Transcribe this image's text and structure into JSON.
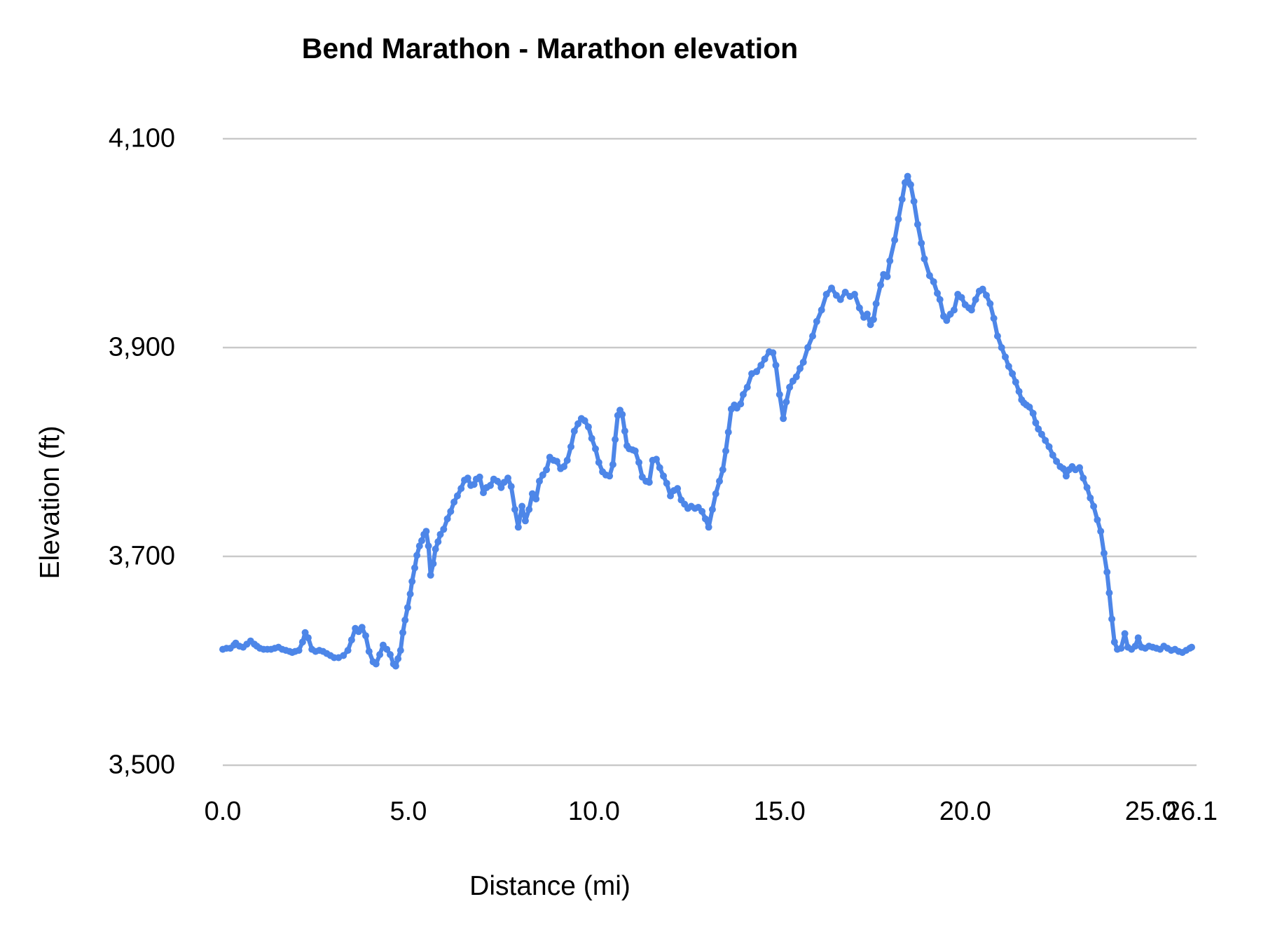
{
  "page": {
    "background": "#ffffff"
  },
  "chart_data": {
    "type": "line",
    "title": "Bend Marathon - Marathon elevation",
    "xlabel": "Distance (mi)",
    "ylabel": "Elevation (ft)",
    "series_name": "Marathon elevation",
    "xlim": [
      0,
      26.1
    ],
    "ylim": [
      3500,
      4100
    ],
    "grid": true,
    "legend_position": "none",
    "series_color": "#4d86e8",
    "gridline_color": "#c9c9c9",
    "text_color": "#000000",
    "x_ticks": [
      {
        "value": 0,
        "label": "0.0"
      },
      {
        "value": 5,
        "label": "5.0"
      },
      {
        "value": 10,
        "label": "10.0"
      },
      {
        "value": 15,
        "label": "15.0"
      },
      {
        "value": 20,
        "label": "20.0"
      },
      {
        "value": 25,
        "label": "25.0"
      },
      {
        "value": 26.1,
        "label": "26.1"
      }
    ],
    "y_ticks": [
      {
        "value": 3500,
        "label": "3,500"
      },
      {
        "value": 3700,
        "label": "3,700"
      },
      {
        "value": 3900,
        "label": "3,900"
      },
      {
        "value": 4100,
        "label": "4,100"
      }
    ],
    "points": [
      [
        0.0,
        3611
      ],
      [
        0.1,
        3612
      ],
      [
        0.2,
        3612
      ],
      [
        0.3,
        3615
      ],
      [
        0.35,
        3617
      ],
      [
        0.45,
        3614
      ],
      [
        0.55,
        3613
      ],
      [
        0.65,
        3616
      ],
      [
        0.75,
        3619
      ],
      [
        0.85,
        3616
      ],
      [
        0.92,
        3614
      ],
      [
        1.0,
        3612
      ],
      [
        1.1,
        3611
      ],
      [
        1.2,
        3611
      ],
      [
        1.3,
        3611
      ],
      [
        1.4,
        3612
      ],
      [
        1.5,
        3613
      ],
      [
        1.6,
        3611
      ],
      [
        1.7,
        3610
      ],
      [
        1.8,
        3609
      ],
      [
        1.87,
        3608
      ],
      [
        1.95,
        3609
      ],
      [
        2.05,
        3610
      ],
      [
        2.15,
        3618
      ],
      [
        2.22,
        3627
      ],
      [
        2.3,
        3622
      ],
      [
        2.4,
        3611
      ],
      [
        2.5,
        3609
      ],
      [
        2.6,
        3610
      ],
      [
        2.7,
        3609
      ],
      [
        2.8,
        3607
      ],
      [
        2.9,
        3605
      ],
      [
        3.0,
        3603
      ],
      [
        3.12,
        3603
      ],
      [
        3.25,
        3605
      ],
      [
        3.37,
        3610
      ],
      [
        3.47,
        3620
      ],
      [
        3.57,
        3631
      ],
      [
        3.66,
        3628
      ],
      [
        3.75,
        3632
      ],
      [
        3.85,
        3624
      ],
      [
        3.94,
        3609
      ],
      [
        4.05,
        3599
      ],
      [
        4.13,
        3597
      ],
      [
        4.23,
        3606
      ],
      [
        4.32,
        3615
      ],
      [
        4.42,
        3611
      ],
      [
        4.51,
        3606
      ],
      [
        4.6,
        3597
      ],
      [
        4.66,
        3595
      ],
      [
        4.72,
        3602
      ],
      [
        4.79,
        3610
      ],
      [
        4.85,
        3627
      ],
      [
        4.91,
        3639
      ],
      [
        4.98,
        3651
      ],
      [
        5.05,
        3664
      ],
      [
        5.1,
        3676
      ],
      [
        5.17,
        3689
      ],
      [
        5.23,
        3701
      ],
      [
        5.3,
        3710
      ],
      [
        5.36,
        3715
      ],
      [
        5.42,
        3721
      ],
      [
        5.48,
        3724
      ],
      [
        5.54,
        3710
      ],
      [
        5.6,
        3682
      ],
      [
        5.67,
        3693
      ],
      [
        5.73,
        3707
      ],
      [
        5.8,
        3714
      ],
      [
        5.86,
        3721
      ],
      [
        5.95,
        3726
      ],
      [
        6.05,
        3736
      ],
      [
        6.14,
        3743
      ],
      [
        6.23,
        3752
      ],
      [
        6.32,
        3758
      ],
      [
        6.42,
        3765
      ],
      [
        6.51,
        3773
      ],
      [
        6.6,
        3775
      ],
      [
        6.68,
        3768
      ],
      [
        6.77,
        3769
      ],
      [
        6.83,
        3774
      ],
      [
        6.92,
        3776
      ],
      [
        7.02,
        3761
      ],
      [
        7.11,
        3766
      ],
      [
        7.21,
        3768
      ],
      [
        7.3,
        3774
      ],
      [
        7.4,
        3772
      ],
      [
        7.5,
        3766
      ],
      [
        7.58,
        3771
      ],
      [
        7.68,
        3775
      ],
      [
        7.77,
        3767
      ],
      [
        7.87,
        3745
      ],
      [
        7.96,
        3728
      ],
      [
        8.06,
        3748
      ],
      [
        8.15,
        3734
      ],
      [
        8.25,
        3745
      ],
      [
        8.34,
        3760
      ],
      [
        8.44,
        3755
      ],
      [
        8.53,
        3772
      ],
      [
        8.62,
        3778
      ],
      [
        8.72,
        3783
      ],
      [
        8.81,
        3795
      ],
      [
        8.91,
        3792
      ],
      [
        9.0,
        3791
      ],
      [
        9.1,
        3784
      ],
      [
        9.19,
        3786
      ],
      [
        9.28,
        3792
      ],
      [
        9.38,
        3805
      ],
      [
        9.47,
        3820
      ],
      [
        9.57,
        3827
      ],
      [
        9.66,
        3832
      ],
      [
        9.75,
        3830
      ],
      [
        9.85,
        3824
      ],
      [
        9.94,
        3813
      ],
      [
        10.04,
        3803
      ],
      [
        10.13,
        3790
      ],
      [
        10.23,
        3781
      ],
      [
        10.32,
        3778
      ],
      [
        10.42,
        3777
      ],
      [
        10.51,
        3788
      ],
      [
        10.57,
        3812
      ],
      [
        10.64,
        3835
      ],
      [
        10.7,
        3840
      ],
      [
        10.76,
        3836
      ],
      [
        10.83,
        3820
      ],
      [
        10.89,
        3806
      ],
      [
        10.95,
        3803
      ],
      [
        11.04,
        3802
      ],
      [
        11.11,
        3801
      ],
      [
        11.21,
        3790
      ],
      [
        11.3,
        3776
      ],
      [
        11.4,
        3772
      ],
      [
        11.49,
        3771
      ],
      [
        11.58,
        3792
      ],
      [
        11.68,
        3793
      ],
      [
        11.77,
        3785
      ],
      [
        11.87,
        3777
      ],
      [
        11.96,
        3770
      ],
      [
        12.06,
        3758
      ],
      [
        12.15,
        3763
      ],
      [
        12.25,
        3765
      ],
      [
        12.35,
        3754
      ],
      [
        12.44,
        3750
      ],
      [
        12.53,
        3746
      ],
      [
        12.62,
        3748
      ],
      [
        12.72,
        3746
      ],
      [
        12.81,
        3747
      ],
      [
        12.91,
        3743
      ],
      [
        13.0,
        3736
      ],
      [
        13.09,
        3728
      ],
      [
        13.19,
        3745
      ],
      [
        13.28,
        3760
      ],
      [
        13.38,
        3772
      ],
      [
        13.47,
        3783
      ],
      [
        13.55,
        3801
      ],
      [
        13.62,
        3819
      ],
      [
        13.7,
        3841
      ],
      [
        13.78,
        3845
      ],
      [
        13.85,
        3842
      ],
      [
        13.95,
        3846
      ],
      [
        14.02,
        3855
      ],
      [
        14.13,
        3862
      ],
      [
        14.25,
        3875
      ],
      [
        14.38,
        3877
      ],
      [
        14.5,
        3883
      ],
      [
        14.6,
        3889
      ],
      [
        14.72,
        3896
      ],
      [
        14.82,
        3895
      ],
      [
        14.9,
        3883
      ],
      [
        15.0,
        3855
      ],
      [
        15.1,
        3832
      ],
      [
        15.18,
        3848
      ],
      [
        15.27,
        3862
      ],
      [
        15.36,
        3868
      ],
      [
        15.45,
        3872
      ],
      [
        15.55,
        3880
      ],
      [
        15.64,
        3886
      ],
      [
        15.76,
        3900
      ],
      [
        15.89,
        3911
      ],
      [
        16.0,
        3925
      ],
      [
        16.13,
        3936
      ],
      [
        16.26,
        3951
      ],
      [
        16.4,
        3957
      ],
      [
        16.53,
        3950
      ],
      [
        16.64,
        3946
      ],
      [
        16.77,
        3953
      ],
      [
        16.9,
        3949
      ],
      [
        17.02,
        3951
      ],
      [
        17.15,
        3938
      ],
      [
        17.27,
        3929
      ],
      [
        17.36,
        3932
      ],
      [
        17.45,
        3922
      ],
      [
        17.53,
        3927
      ],
      [
        17.6,
        3942
      ],
      [
        17.72,
        3960
      ],
      [
        17.8,
        3970
      ],
      [
        17.9,
        3968
      ],
      [
        17.97,
        3983
      ],
      [
        18.1,
        4003
      ],
      [
        18.2,
        4023
      ],
      [
        18.3,
        4042
      ],
      [
        18.38,
        4058
      ],
      [
        18.45,
        4064
      ],
      [
        18.53,
        4056
      ],
      [
        18.62,
        4040
      ],
      [
        18.72,
        4018
      ],
      [
        18.82,
        4000
      ],
      [
        18.9,
        3985
      ],
      [
        19.04,
        3969
      ],
      [
        19.15,
        3963
      ],
      [
        19.25,
        3952
      ],
      [
        19.32,
        3946
      ],
      [
        19.42,
        3930
      ],
      [
        19.5,
        3926
      ],
      [
        19.6,
        3932
      ],
      [
        19.7,
        3936
      ],
      [
        19.8,
        3951
      ],
      [
        19.9,
        3948
      ],
      [
        20.0,
        3941
      ],
      [
        20.1,
        3938
      ],
      [
        20.17,
        3936
      ],
      [
        20.28,
        3946
      ],
      [
        20.38,
        3954
      ],
      [
        20.47,
        3956
      ],
      [
        20.57,
        3950
      ],
      [
        20.67,
        3942
      ],
      [
        20.77,
        3928
      ],
      [
        20.87,
        3911
      ],
      [
        20.98,
        3900
      ],
      [
        21.08,
        3891
      ],
      [
        21.17,
        3882
      ],
      [
        21.27,
        3875
      ],
      [
        21.36,
        3867
      ],
      [
        21.45,
        3858
      ],
      [
        21.52,
        3850
      ],
      [
        21.58,
        3847
      ],
      [
        21.65,
        3845
      ],
      [
        21.73,
        3843
      ],
      [
        21.83,
        3837
      ],
      [
        21.9,
        3828
      ],
      [
        21.97,
        3822
      ],
      [
        22.06,
        3817
      ],
      [
        22.16,
        3811
      ],
      [
        22.26,
        3805
      ],
      [
        22.36,
        3797
      ],
      [
        22.46,
        3791
      ],
      [
        22.56,
        3786
      ],
      [
        22.64,
        3784
      ],
      [
        22.72,
        3777
      ],
      [
        22.8,
        3783
      ],
      [
        22.88,
        3786
      ],
      [
        22.97,
        3783
      ],
      [
        23.08,
        3785
      ],
      [
        23.18,
        3775
      ],
      [
        23.28,
        3766
      ],
      [
        23.37,
        3756
      ],
      [
        23.46,
        3748
      ],
      [
        23.56,
        3735
      ],
      [
        23.65,
        3724
      ],
      [
        23.74,
        3703
      ],
      [
        23.82,
        3685
      ],
      [
        23.88,
        3665
      ],
      [
        23.95,
        3640
      ],
      [
        24.02,
        3618
      ],
      [
        24.1,
        3611
      ],
      [
        24.2,
        3612
      ],
      [
        24.3,
        3626
      ],
      [
        24.38,
        3613
      ],
      [
        24.48,
        3611
      ],
      [
        24.58,
        3614
      ],
      [
        24.66,
        3622
      ],
      [
        24.75,
        3613
      ],
      [
        24.85,
        3612
      ],
      [
        24.95,
        3614
      ],
      [
        25.05,
        3613
      ],
      [
        25.15,
        3612
      ],
      [
        25.25,
        3611
      ],
      [
        25.35,
        3614
      ],
      [
        25.45,
        3612
      ],
      [
        25.55,
        3610
      ],
      [
        25.65,
        3611
      ],
      [
        25.75,
        3609
      ],
      [
        25.85,
        3608
      ],
      [
        25.95,
        3610
      ],
      [
        26.05,
        3612
      ],
      [
        26.1,
        3613
      ]
    ]
  }
}
